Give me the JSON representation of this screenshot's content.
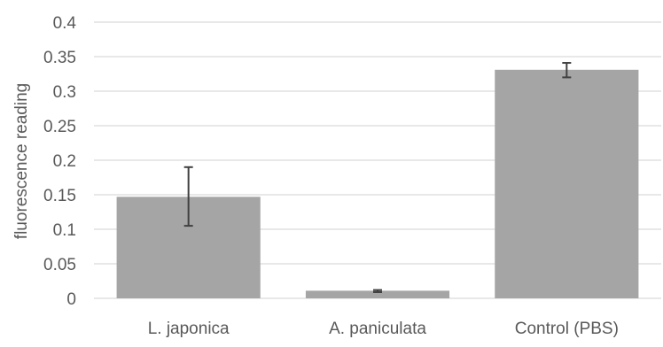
{
  "chart_data": {
    "type": "bar",
    "title": "",
    "xlabel": "",
    "ylabel": "fluorescence reading",
    "categories": [
      "L. japonica",
      "A. paniculata",
      "Control (PBS)"
    ],
    "values": [
      0.147,
      0.011,
      0.331
    ],
    "error_low": [
      0.105,
      0.009,
      0.32
    ],
    "error_high": [
      0.19,
      0.012,
      0.341
    ],
    "ylim": [
      0,
      0.4
    ],
    "yticks": [
      0,
      0.05,
      0.1,
      0.15,
      0.2,
      0.25,
      0.3,
      0.35,
      0.4
    ],
    "ytick_labels": [
      "0",
      "0.05",
      "0.1",
      "0.15",
      "0.2",
      "0.25",
      "0.3",
      "0.35",
      "0.4"
    ],
    "grid": true,
    "colors": {
      "bar": "#a5a5a5",
      "error_bar": "#404040",
      "grid": "#d9d9d9",
      "text": "#595959"
    }
  }
}
